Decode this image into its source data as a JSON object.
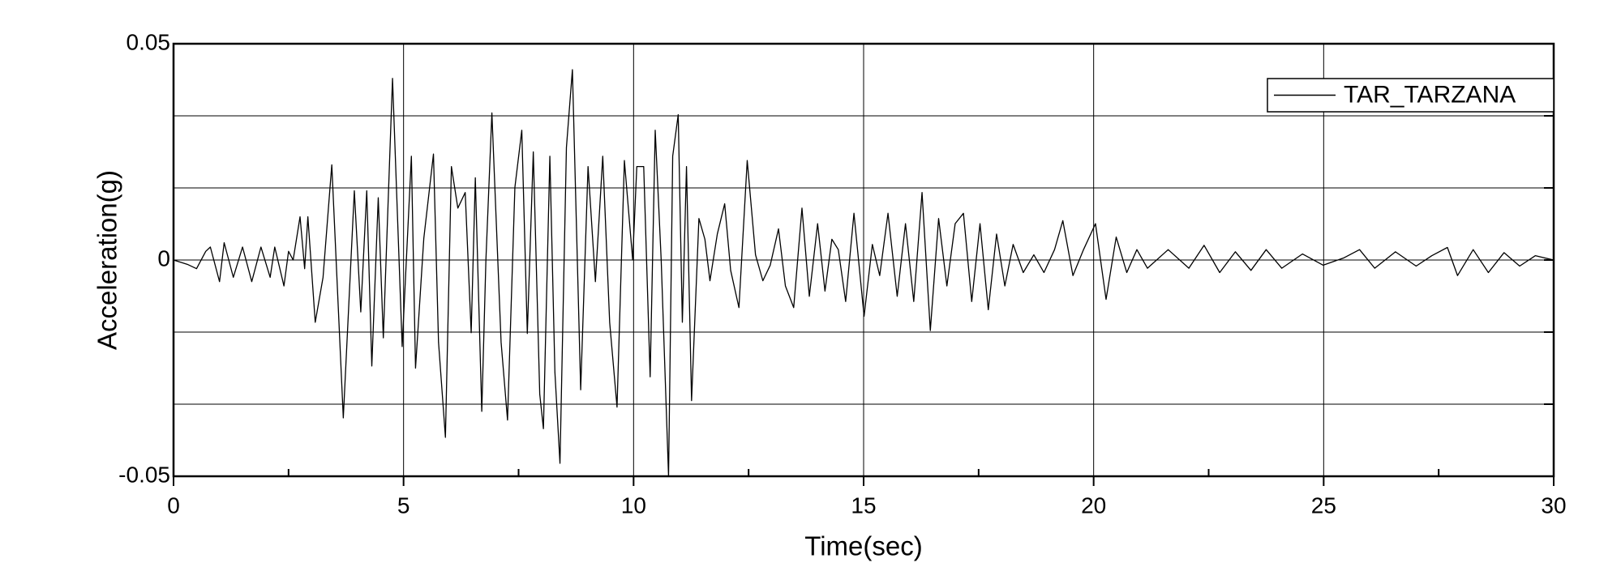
{
  "chart_data": {
    "type": "line",
    "xlabel": "Time(sec)",
    "ylabel": "Acceleration(g)",
    "xlim": [
      0,
      30
    ],
    "ylim": [
      -0.05,
      0.05
    ],
    "xticks": [
      0,
      5,
      10,
      15,
      20,
      25,
      30
    ],
    "yticks": [
      -0.05,
      0,
      0.05
    ],
    "xminor_ticks": [
      2.5,
      7.5,
      12.5,
      17.5,
      22.5,
      27.5
    ],
    "ygrid": [
      -0.03333,
      -0.01667,
      0.01667,
      0.03333
    ],
    "grid": true,
    "legend": "upper right",
    "x": [
      0,
      0.3,
      0.5,
      0.7,
      0.8,
      1.0,
      1.1,
      1.3,
      1.5,
      1.7,
      1.9,
      2.1,
      2.2,
      2.4,
      2.5,
      2.6,
      2.75,
      2.85,
      2.92,
      3.08,
      3.25,
      3.44,
      3.69,
      3.93,
      4.07,
      4.2,
      4.31,
      4.45,
      4.56,
      4.76,
      4.97,
      5.17,
      5.26,
      5.44,
      5.65,
      5.76,
      5.91,
      6.04,
      6.18,
      6.34,
      6.47,
      6.56,
      6.7,
      6.79,
      6.92,
      7.12,
      7.26,
      7.42,
      7.57,
      7.69,
      7.82,
      7.96,
      8.04,
      8.18,
      8.29,
      8.4,
      8.54,
      8.67,
      8.85,
      9.01,
      9.17,
      9.33,
      9.48,
      9.64,
      9.8,
      9.98,
      10.07,
      10.22,
      10.36,
      10.47,
      10.6,
      10.76,
      10.85,
      10.97,
      11.06,
      11.15,
      11.26,
      11.42,
      11.55,
      11.66,
      11.82,
      11.98,
      12.11,
      12.29,
      12.47,
      12.65,
      12.81,
      12.97,
      13.15,
      13.3,
      13.48,
      13.66,
      13.82,
      14.0,
      14.16,
      14.31,
      14.45,
      14.61,
      14.79,
      15.01,
      15.19,
      15.35,
      15.53,
      15.73,
      15.91,
      16.09,
      16.27,
      16.45,
      16.63,
      16.81,
      16.99,
      17.17,
      17.35,
      17.53,
      17.71,
      17.89,
      18.07,
      18.25,
      18.47,
      18.7,
      18.92,
      19.15,
      19.33,
      19.55,
      19.78,
      20.04,
      20.27,
      20.49,
      20.72,
      20.94,
      21.17,
      21.62,
      22.07,
      22.4,
      22.74,
      23.08,
      23.42,
      23.75,
      24.09,
      24.54,
      24.99,
      25.44,
      25.78,
      26.11,
      26.56,
      27.01,
      27.35,
      27.69,
      27.91,
      28.25,
      28.58,
      28.92,
      29.26,
      29.6,
      30
    ],
    "series": [
      {
        "name": "TAR_TARZANA",
        "color": "#000000",
        "values": [
          0,
          -0.001,
          -0.002,
          0.002,
          0.003,
          -0.005,
          0.004,
          -0.004,
          0.003,
          -0.005,
          0.003,
          -0.004,
          0.003,
          -0.006,
          0.002,
          0.0,
          0.01,
          -0.002,
          0.01,
          -0.0144,
          -0.004,
          0.022,
          -0.0365,
          0.016,
          -0.012,
          0.016,
          -0.0245,
          0.0144,
          -0.018,
          0.042,
          -0.02,
          0.024,
          -0.025,
          0.005,
          0.0245,
          -0.019,
          -0.041,
          0.0216,
          0.012,
          0.0156,
          -0.0168,
          0.019,
          -0.035,
          0,
          0.034,
          -0.019,
          -0.037,
          0.0168,
          0.03,
          -0.017,
          0.025,
          -0.031,
          -0.039,
          0.024,
          -0.026,
          -0.047,
          0.026,
          0.044,
          -0.03,
          0.0216,
          -0.005,
          0.024,
          -0.0144,
          -0.034,
          0.023,
          0,
          0.0216,
          0.0216,
          -0.027,
          0.03,
          0,
          -0.05,
          0.024,
          0.0336,
          -0.0144,
          0.0216,
          -0.0325,
          0.0096,
          0.0048,
          -0.0048,
          0.006,
          0.013,
          -0.0024,
          -0.011,
          0.023,
          0.0012,
          -0.0048,
          -0.0012,
          0.0072,
          -0.006,
          -0.011,
          0.012,
          -0.0084,
          0.0084,
          -0.0072,
          0.0048,
          0.0024,
          -0.0096,
          0.0108,
          -0.013,
          0.0036,
          -0.0036,
          0.0108,
          -0.0084,
          0.0084,
          -0.0096,
          0.0156,
          -0.0163,
          0.0096,
          -0.006,
          0.0084,
          0.0108,
          -0.0096,
          0.0084,
          -0.0115,
          0.006,
          -0.006,
          0.0036,
          -0.0029,
          0.0012,
          -0.0029,
          0.0024,
          0.0091,
          -0.0036,
          0.0024,
          0.0084,
          -0.0091,
          0.0053,
          -0.0029,
          0.0024,
          -0.0019,
          0.0024,
          -0.0019,
          0.0034,
          -0.0029,
          0.0019,
          -0.0024,
          0.0024,
          -0.0019,
          0.0014,
          -0.0012,
          0.0005,
          0.0024,
          -0.0019,
          0.0019,
          -0.0014,
          0.001,
          0.0029,
          -0.0036,
          0.0024,
          -0.0029,
          0.0017,
          -0.0014,
          0.001,
          0
        ]
      }
    ]
  }
}
